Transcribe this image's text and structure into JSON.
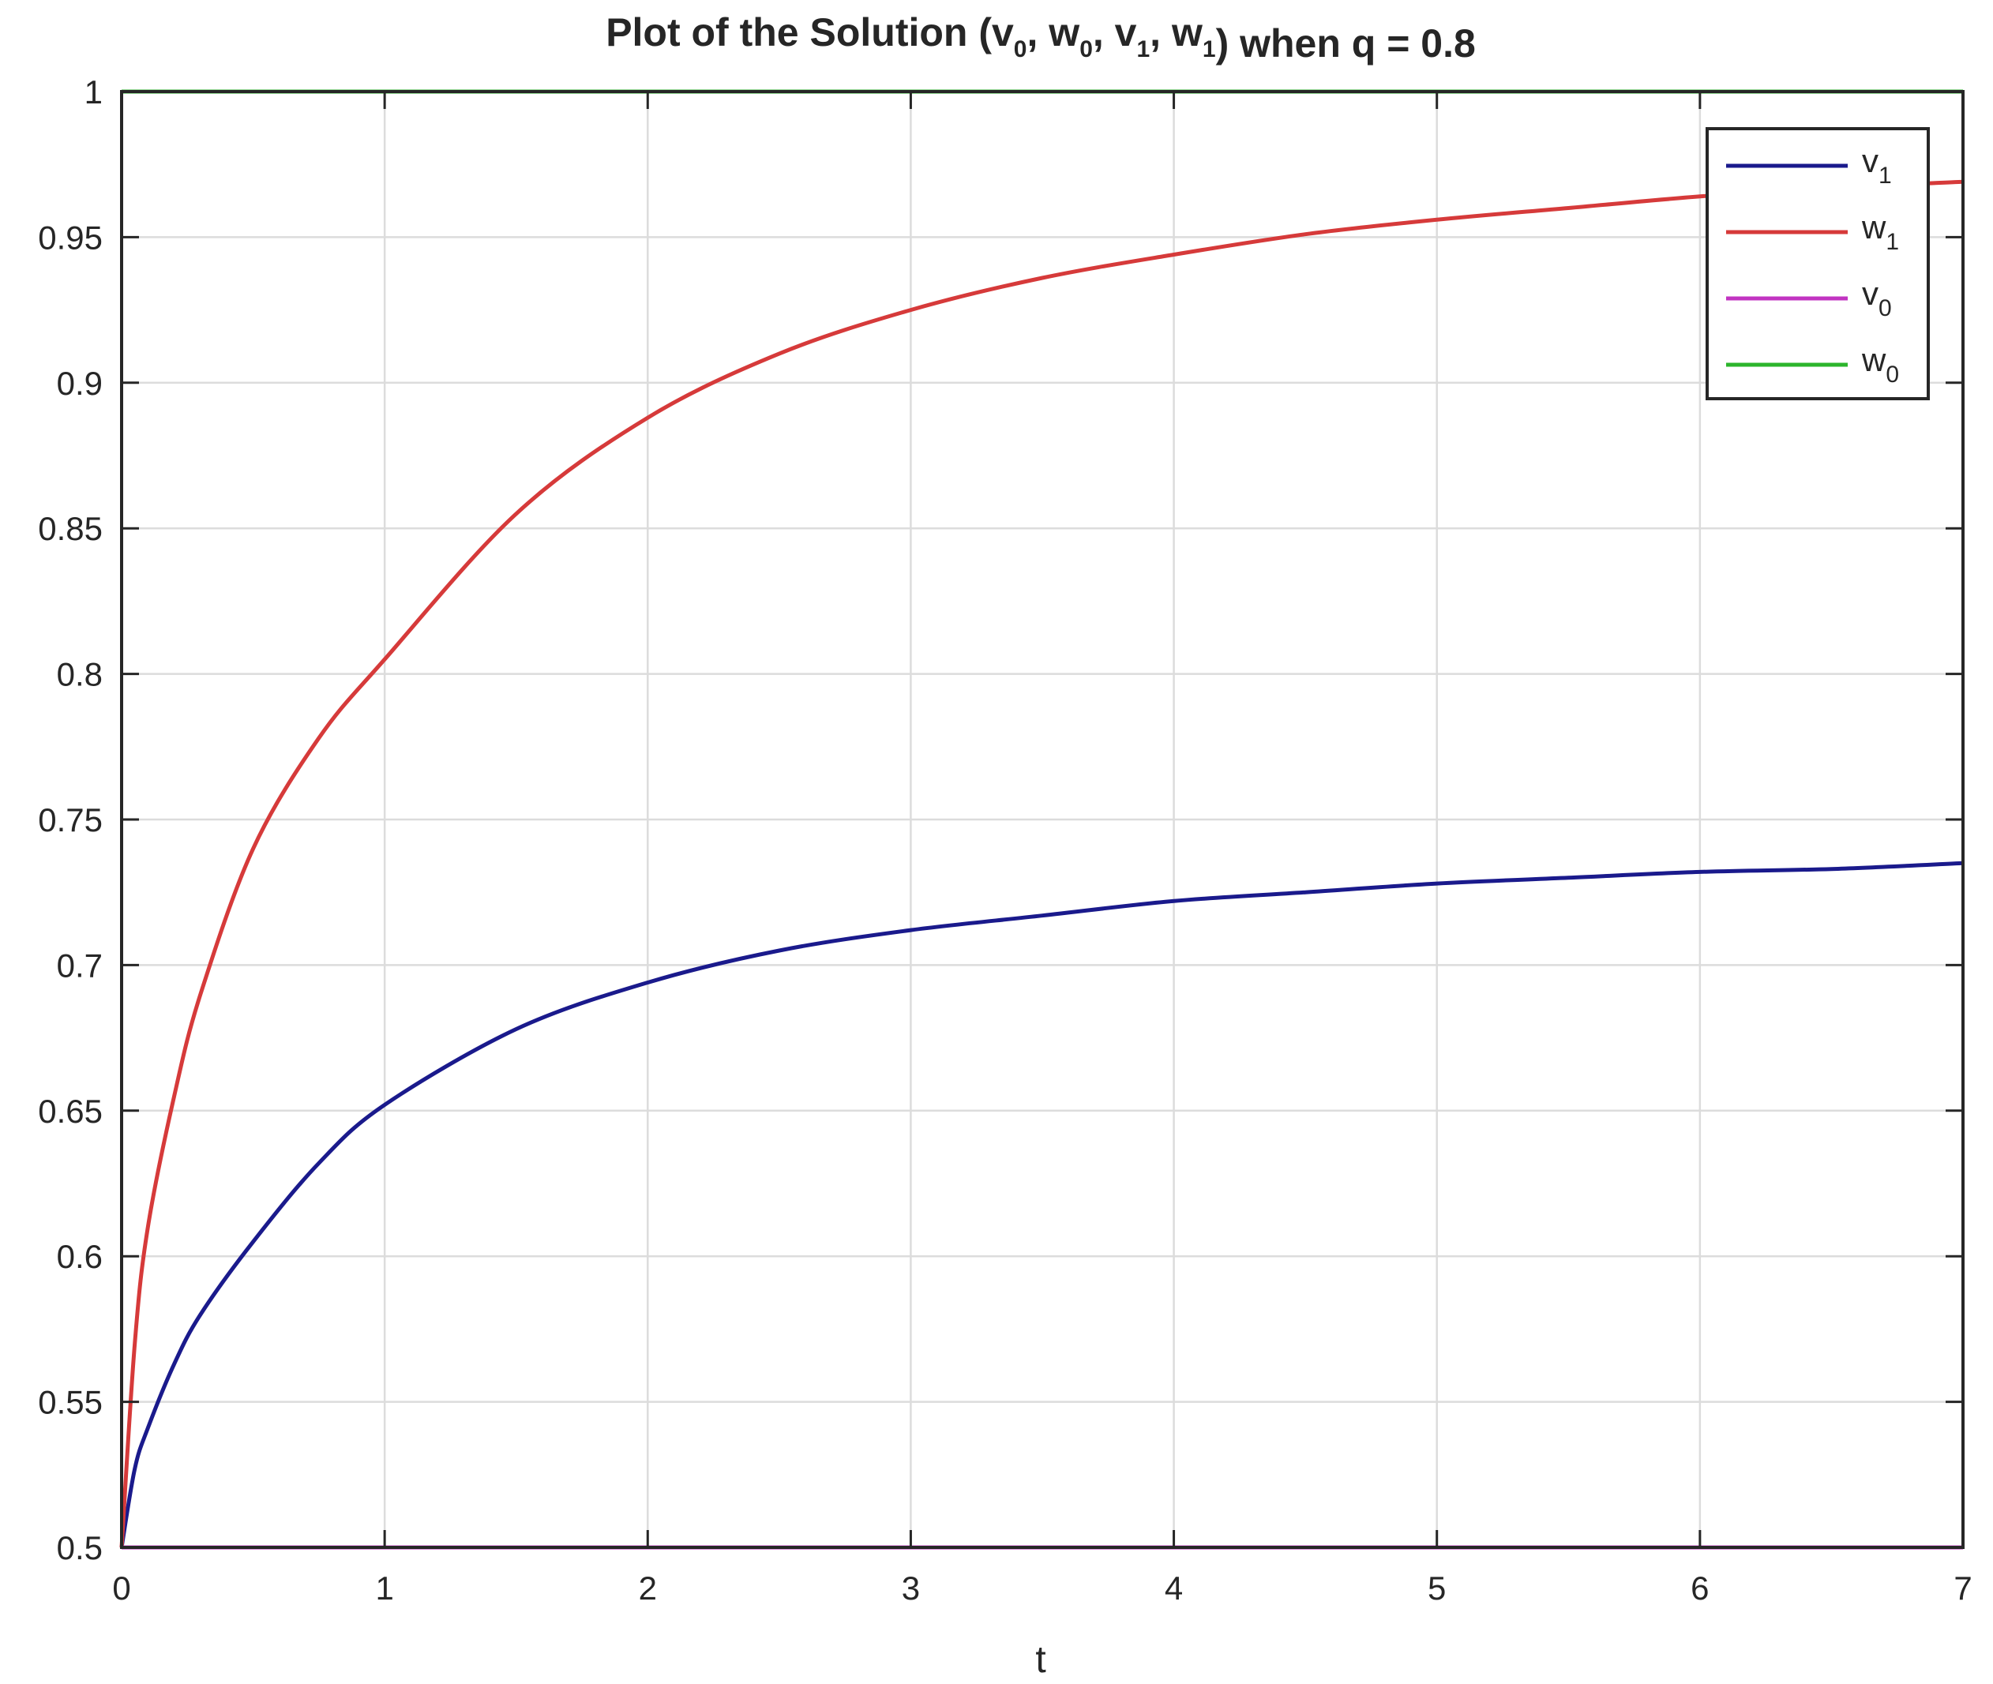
{
  "chart_data": {
    "type": "line",
    "title": {
      "prefix": "Plot of the Solution (",
      "parts": [
        {
          "base": "v",
          "sub": "0",
          "after": ", "
        },
        {
          "base": "w",
          "sub": "0",
          "after": ", "
        },
        {
          "base": "v",
          "sub": "1",
          "after": ", "
        },
        {
          "base": "w",
          "sub": "1",
          "after": ""
        }
      ],
      "suffix": ") when q = 0.8"
    },
    "xlabel": "t",
    "ylabel": "",
    "xlim": [
      0,
      7
    ],
    "ylim": [
      0.5,
      1
    ],
    "x_ticks": [
      0,
      1,
      2,
      3,
      4,
      5,
      6,
      7
    ],
    "x_tick_labels": [
      "0",
      "1",
      "2",
      "3",
      "4",
      "5",
      "6",
      "7"
    ],
    "y_ticks": [
      0.5,
      0.55,
      0.6,
      0.65,
      0.7,
      0.75,
      0.8,
      0.85,
      0.9,
      0.95,
      1
    ],
    "y_tick_labels": [
      "0.5",
      "0.55",
      "0.6",
      "0.65",
      "0.7",
      "0.75",
      "0.8",
      "0.85",
      "0.9",
      "0.95",
      "1"
    ],
    "grid": true,
    "legend_position": "top-right",
    "series": [
      {
        "name": "v1",
        "label_base": "v",
        "label_sub": "1",
        "color": "#1a1a8c",
        "x": [
          0,
          0.05,
          0.1,
          0.2,
          0.3,
          0.5,
          0.75,
          1,
          1.5,
          2,
          2.5,
          3,
          3.5,
          4,
          4.5,
          5,
          5.5,
          6,
          6.5,
          7
        ],
        "y": [
          0.5,
          0.527,
          0.541,
          0.563,
          0.58,
          0.605,
          0.632,
          0.652,
          0.678,
          0.694,
          0.705,
          0.712,
          0.717,
          0.722,
          0.725,
          0.728,
          0.73,
          0.732,
          0.733,
          0.735
        ]
      },
      {
        "name": "w1",
        "label_base": "w",
        "label_sub": "1",
        "color": "#d63a3a",
        "x": [
          0,
          0.05,
          0.1,
          0.2,
          0.3,
          0.5,
          0.75,
          1,
          1.5,
          2,
          2.5,
          3,
          3.5,
          4,
          4.5,
          5,
          5.5,
          6,
          6.5,
          7
        ],
        "y": [
          0.5,
          0.57,
          0.61,
          0.655,
          0.69,
          0.74,
          0.778,
          0.805,
          0.855,
          0.888,
          0.91,
          0.925,
          0.936,
          0.944,
          0.951,
          0.956,
          0.96,
          0.964,
          0.967,
          0.969
        ]
      },
      {
        "name": "v0",
        "label_base": "v",
        "label_sub": "0",
        "color": "#c133c1",
        "x": [
          0,
          7
        ],
        "y": [
          0.5,
          0.5
        ]
      },
      {
        "name": "w0",
        "label_base": "w",
        "label_sub": "0",
        "color": "#2cb52c",
        "x": [
          0,
          7
        ],
        "y": [
          1,
          1
        ]
      }
    ]
  }
}
